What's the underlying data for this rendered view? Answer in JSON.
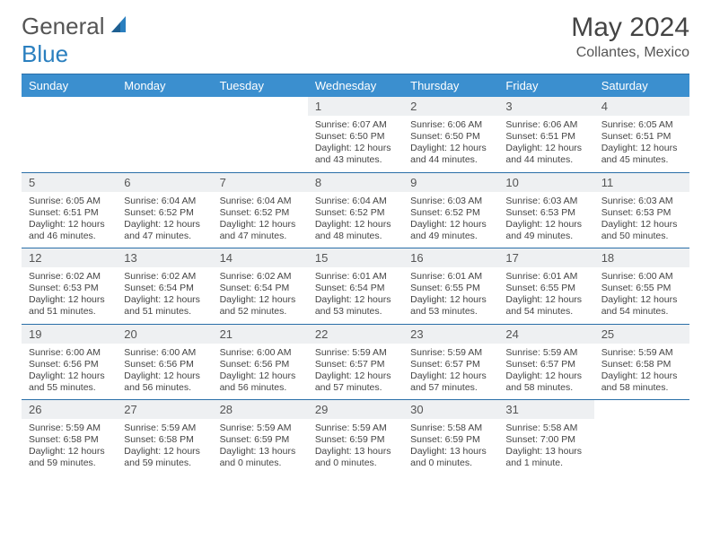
{
  "brand": {
    "part1": "General",
    "part2": "Blue"
  },
  "title": "May 2024",
  "subtitle": "Collantes, Mexico",
  "colors": {
    "header_bg": "#3b8fcf",
    "header_text": "#ffffff",
    "border": "#2a6fa8",
    "daynum_bg": "#eef0f2",
    "text": "#444444",
    "brand_gray": "#555555",
    "brand_blue": "#2a7fbf"
  },
  "weekdays": [
    "Sunday",
    "Monday",
    "Tuesday",
    "Wednesday",
    "Thursday",
    "Friday",
    "Saturday"
  ],
  "weeks": [
    [
      {
        "n": "",
        "lines": []
      },
      {
        "n": "",
        "lines": []
      },
      {
        "n": "",
        "lines": []
      },
      {
        "n": "1",
        "lines": [
          "Sunrise: 6:07 AM",
          "Sunset: 6:50 PM",
          "Daylight: 12 hours and 43 minutes."
        ]
      },
      {
        "n": "2",
        "lines": [
          "Sunrise: 6:06 AM",
          "Sunset: 6:50 PM",
          "Daylight: 12 hours and 44 minutes."
        ]
      },
      {
        "n": "3",
        "lines": [
          "Sunrise: 6:06 AM",
          "Sunset: 6:51 PM",
          "Daylight: 12 hours and 44 minutes."
        ]
      },
      {
        "n": "4",
        "lines": [
          "Sunrise: 6:05 AM",
          "Sunset: 6:51 PM",
          "Daylight: 12 hours and 45 minutes."
        ]
      }
    ],
    [
      {
        "n": "5",
        "lines": [
          "Sunrise: 6:05 AM",
          "Sunset: 6:51 PM",
          "Daylight: 12 hours and 46 minutes."
        ]
      },
      {
        "n": "6",
        "lines": [
          "Sunrise: 6:04 AM",
          "Sunset: 6:52 PM",
          "Daylight: 12 hours and 47 minutes."
        ]
      },
      {
        "n": "7",
        "lines": [
          "Sunrise: 6:04 AM",
          "Sunset: 6:52 PM",
          "Daylight: 12 hours and 47 minutes."
        ]
      },
      {
        "n": "8",
        "lines": [
          "Sunrise: 6:04 AM",
          "Sunset: 6:52 PM",
          "Daylight: 12 hours and 48 minutes."
        ]
      },
      {
        "n": "9",
        "lines": [
          "Sunrise: 6:03 AM",
          "Sunset: 6:52 PM",
          "Daylight: 12 hours and 49 minutes."
        ]
      },
      {
        "n": "10",
        "lines": [
          "Sunrise: 6:03 AM",
          "Sunset: 6:53 PM",
          "Daylight: 12 hours and 49 minutes."
        ]
      },
      {
        "n": "11",
        "lines": [
          "Sunrise: 6:03 AM",
          "Sunset: 6:53 PM",
          "Daylight: 12 hours and 50 minutes."
        ]
      }
    ],
    [
      {
        "n": "12",
        "lines": [
          "Sunrise: 6:02 AM",
          "Sunset: 6:53 PM",
          "Daylight: 12 hours and 51 minutes."
        ]
      },
      {
        "n": "13",
        "lines": [
          "Sunrise: 6:02 AM",
          "Sunset: 6:54 PM",
          "Daylight: 12 hours and 51 minutes."
        ]
      },
      {
        "n": "14",
        "lines": [
          "Sunrise: 6:02 AM",
          "Sunset: 6:54 PM",
          "Daylight: 12 hours and 52 minutes."
        ]
      },
      {
        "n": "15",
        "lines": [
          "Sunrise: 6:01 AM",
          "Sunset: 6:54 PM",
          "Daylight: 12 hours and 53 minutes."
        ]
      },
      {
        "n": "16",
        "lines": [
          "Sunrise: 6:01 AM",
          "Sunset: 6:55 PM",
          "Daylight: 12 hours and 53 minutes."
        ]
      },
      {
        "n": "17",
        "lines": [
          "Sunrise: 6:01 AM",
          "Sunset: 6:55 PM",
          "Daylight: 12 hours and 54 minutes."
        ]
      },
      {
        "n": "18",
        "lines": [
          "Sunrise: 6:00 AM",
          "Sunset: 6:55 PM",
          "Daylight: 12 hours and 54 minutes."
        ]
      }
    ],
    [
      {
        "n": "19",
        "lines": [
          "Sunrise: 6:00 AM",
          "Sunset: 6:56 PM",
          "Daylight: 12 hours and 55 minutes."
        ]
      },
      {
        "n": "20",
        "lines": [
          "Sunrise: 6:00 AM",
          "Sunset: 6:56 PM",
          "Daylight: 12 hours and 56 minutes."
        ]
      },
      {
        "n": "21",
        "lines": [
          "Sunrise: 6:00 AM",
          "Sunset: 6:56 PM",
          "Daylight: 12 hours and 56 minutes."
        ]
      },
      {
        "n": "22",
        "lines": [
          "Sunrise: 5:59 AM",
          "Sunset: 6:57 PM",
          "Daylight: 12 hours and 57 minutes."
        ]
      },
      {
        "n": "23",
        "lines": [
          "Sunrise: 5:59 AM",
          "Sunset: 6:57 PM",
          "Daylight: 12 hours and 57 minutes."
        ]
      },
      {
        "n": "24",
        "lines": [
          "Sunrise: 5:59 AM",
          "Sunset: 6:57 PM",
          "Daylight: 12 hours and 58 minutes."
        ]
      },
      {
        "n": "25",
        "lines": [
          "Sunrise: 5:59 AM",
          "Sunset: 6:58 PM",
          "Daylight: 12 hours and 58 minutes."
        ]
      }
    ],
    [
      {
        "n": "26",
        "lines": [
          "Sunrise: 5:59 AM",
          "Sunset: 6:58 PM",
          "Daylight: 12 hours and 59 minutes."
        ]
      },
      {
        "n": "27",
        "lines": [
          "Sunrise: 5:59 AM",
          "Sunset: 6:58 PM",
          "Daylight: 12 hours and 59 minutes."
        ]
      },
      {
        "n": "28",
        "lines": [
          "Sunrise: 5:59 AM",
          "Sunset: 6:59 PM",
          "Daylight: 13 hours and 0 minutes."
        ]
      },
      {
        "n": "29",
        "lines": [
          "Sunrise: 5:59 AM",
          "Sunset: 6:59 PM",
          "Daylight: 13 hours and 0 minutes."
        ]
      },
      {
        "n": "30",
        "lines": [
          "Sunrise: 5:58 AM",
          "Sunset: 6:59 PM",
          "Daylight: 13 hours and 0 minutes."
        ]
      },
      {
        "n": "31",
        "lines": [
          "Sunrise: 5:58 AM",
          "Sunset: 7:00 PM",
          "Daylight: 13 hours and 1 minute."
        ]
      },
      {
        "n": "",
        "lines": []
      }
    ]
  ]
}
